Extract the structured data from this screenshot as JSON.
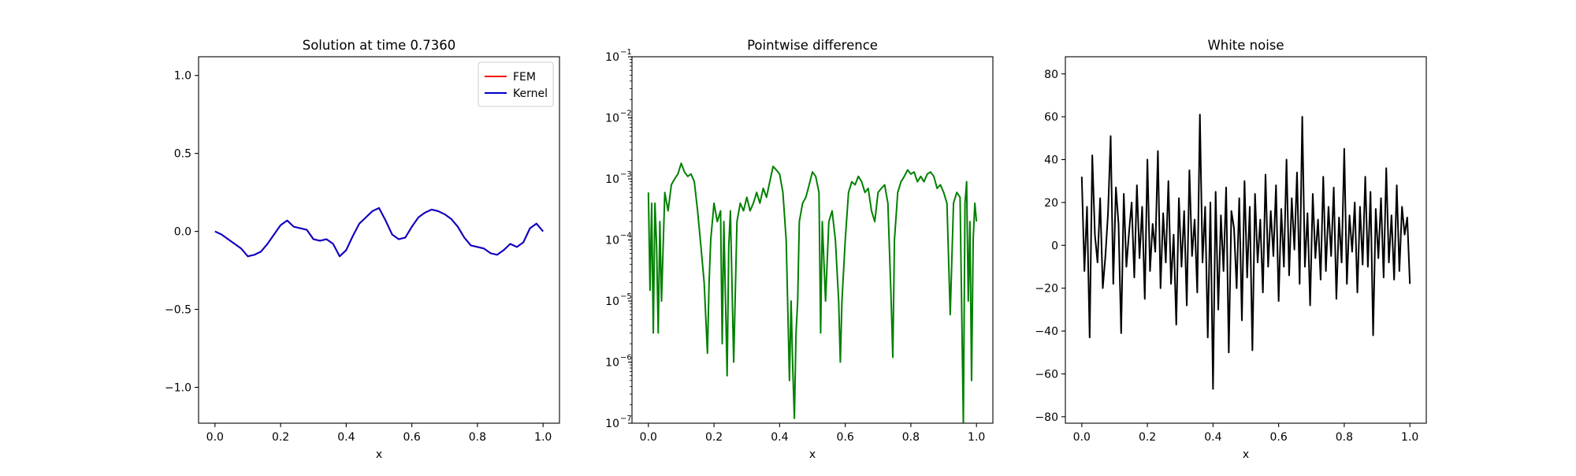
{
  "chart_data": [
    {
      "type": "line",
      "title": "Solution at time 0.7360",
      "xlabel": "x",
      "ylabel": "",
      "xlim": [
        -0.05,
        1.05
      ],
      "ylim": [
        -1.23,
        1.12
      ],
      "xticks": [
        0.0,
        0.2,
        0.4,
        0.6,
        0.8,
        1.0
      ],
      "xtick_labels": [
        "0.0",
        "0.2",
        "0.4",
        "0.6",
        "0.8",
        "1.0"
      ],
      "yticks": [
        -1.0,
        -0.5,
        0.0,
        0.5,
        1.0
      ],
      "ytick_labels": [
        "−1.0",
        "−0.5",
        "0.0",
        "0.5",
        "1.0"
      ],
      "legend": {
        "placement": "upper right",
        "entries": [
          "FEM",
          "Kernel"
        ]
      },
      "grid": false,
      "series": [
        {
          "name": "FEM",
          "color": "#ff0000",
          "x": [
            0.0,
            0.02,
            0.04,
            0.06,
            0.08,
            0.1,
            0.12,
            0.14,
            0.16,
            0.18,
            0.2,
            0.22,
            0.24,
            0.26,
            0.28,
            0.3,
            0.32,
            0.34,
            0.36,
            0.38,
            0.4,
            0.42,
            0.44,
            0.46,
            0.48,
            0.5,
            0.52,
            0.54,
            0.56,
            0.58,
            0.6,
            0.62,
            0.64,
            0.66,
            0.68,
            0.7,
            0.72,
            0.74,
            0.76,
            0.78,
            0.8,
            0.82,
            0.84,
            0.86,
            0.88,
            0.9,
            0.92,
            0.94,
            0.96,
            0.98,
            1.0
          ],
          "y": [
            0.0,
            -0.02,
            -0.05,
            -0.08,
            -0.11,
            -0.16,
            -0.15,
            -0.13,
            -0.08,
            -0.02,
            0.04,
            0.07,
            0.03,
            0.02,
            0.01,
            -0.05,
            -0.06,
            -0.05,
            -0.08,
            -0.16,
            -0.12,
            -0.03,
            0.05,
            0.09,
            0.13,
            0.15,
            0.07,
            -0.02,
            -0.05,
            -0.04,
            0.03,
            0.09,
            0.12,
            0.14,
            0.13,
            0.11,
            0.08,
            0.03,
            -0.04,
            -0.09,
            -0.1,
            -0.11,
            -0.14,
            -0.15,
            -0.12,
            -0.08,
            -0.1,
            -0.07,
            0.02,
            0.05,
            0.0
          ]
        },
        {
          "name": "Kernel",
          "color": "#0000cc",
          "x": [
            0.0,
            0.02,
            0.04,
            0.06,
            0.08,
            0.1,
            0.12,
            0.14,
            0.16,
            0.18,
            0.2,
            0.22,
            0.24,
            0.26,
            0.28,
            0.3,
            0.32,
            0.34,
            0.36,
            0.38,
            0.4,
            0.42,
            0.44,
            0.46,
            0.48,
            0.5,
            0.52,
            0.54,
            0.56,
            0.58,
            0.6,
            0.62,
            0.64,
            0.66,
            0.68,
            0.7,
            0.72,
            0.74,
            0.76,
            0.78,
            0.8,
            0.82,
            0.84,
            0.86,
            0.88,
            0.9,
            0.92,
            0.94,
            0.96,
            0.98,
            1.0
          ],
          "y": [
            0.0,
            -0.02,
            -0.05,
            -0.08,
            -0.11,
            -0.16,
            -0.15,
            -0.13,
            -0.08,
            -0.02,
            0.04,
            0.07,
            0.03,
            0.02,
            0.01,
            -0.05,
            -0.06,
            -0.05,
            -0.08,
            -0.16,
            -0.12,
            -0.03,
            0.05,
            0.09,
            0.13,
            0.15,
            0.07,
            -0.02,
            -0.05,
            -0.04,
            0.03,
            0.09,
            0.12,
            0.14,
            0.13,
            0.11,
            0.08,
            0.03,
            -0.04,
            -0.09,
            -0.1,
            -0.11,
            -0.14,
            -0.15,
            -0.12,
            -0.08,
            -0.1,
            -0.07,
            0.02,
            0.05,
            0.0
          ]
        }
      ]
    },
    {
      "type": "line",
      "title": "Pointwise difference",
      "xlabel": "x",
      "ylabel": "",
      "yscale": "log",
      "xlim": [
        -0.05,
        1.05
      ],
      "ylim": [
        1e-07,
        0.1
      ],
      "xticks": [
        0.0,
        0.2,
        0.4,
        0.6,
        0.8,
        1.0
      ],
      "xtick_labels": [
        "0.0",
        "0.2",
        "0.4",
        "0.6",
        "0.8",
        "1.0"
      ],
      "yticks": [
        1e-07,
        1e-06,
        1e-05,
        0.0001,
        0.001,
        0.01,
        0.1
      ],
      "ytick_labels": [
        "10",
        "10",
        "10",
        "10",
        "10",
        "10",
        "10"
      ],
      "ytick_exponents": [
        "−7",
        "−6",
        "−5",
        "−4",
        "−3",
        "−2",
        "−1"
      ],
      "grid": false,
      "series": [
        {
          "color": "#008000",
          "x": [
            0.0,
            0.005,
            0.01,
            0.015,
            0.02,
            0.025,
            0.03,
            0.035,
            0.04,
            0.05,
            0.06,
            0.07,
            0.08,
            0.09,
            0.1,
            0.11,
            0.12,
            0.13,
            0.14,
            0.15,
            0.16,
            0.17,
            0.18,
            0.185,
            0.19,
            0.2,
            0.21,
            0.22,
            0.225,
            0.23,
            0.24,
            0.245,
            0.25,
            0.26,
            0.27,
            0.28,
            0.29,
            0.3,
            0.31,
            0.32,
            0.33,
            0.34,
            0.35,
            0.36,
            0.37,
            0.38,
            0.39,
            0.4,
            0.41,
            0.42,
            0.43,
            0.435,
            0.44,
            0.445,
            0.45,
            0.455,
            0.46,
            0.47,
            0.48,
            0.49,
            0.5,
            0.51,
            0.52,
            0.525,
            0.53,
            0.54,
            0.55,
            0.56,
            0.57,
            0.58,
            0.585,
            0.59,
            0.6,
            0.61,
            0.62,
            0.63,
            0.64,
            0.65,
            0.66,
            0.67,
            0.68,
            0.69,
            0.7,
            0.71,
            0.72,
            0.73,
            0.74,
            0.745,
            0.75,
            0.76,
            0.77,
            0.78,
            0.79,
            0.8,
            0.81,
            0.82,
            0.83,
            0.84,
            0.85,
            0.86,
            0.87,
            0.88,
            0.89,
            0.9,
            0.91,
            0.92,
            0.93,
            0.94,
            0.95,
            0.96,
            0.965,
            0.97,
            0.975,
            0.98,
            0.985,
            0.99,
            0.995,
            1.0
          ],
          "y": [
            0.0006,
            1.5e-05,
            0.0004,
            3e-06,
            0.0004,
            8e-05,
            3e-06,
            0.0002,
            1e-05,
            0.0006,
            0.0003,
            0.0008,
            0.001,
            0.0012,
            0.0018,
            0.0013,
            0.0011,
            0.0012,
            0.0009,
            0.0003,
            8e-05,
            2e-05,
            1.4e-06,
            2e-05,
            0.0001,
            0.0004,
            0.0002,
            0.0003,
            2e-06,
            0.0002,
            6e-07,
            8e-05,
            0.0003,
            1e-06,
            0.0002,
            0.0004,
            0.0003,
            0.0005,
            0.0003,
            0.0004,
            0.0006,
            0.0004,
            0.0007,
            0.0005,
            0.0009,
            0.0016,
            0.0014,
            0.0012,
            0.0006,
            0.0001,
            5e-07,
            1e-05,
            8e-07,
            1.2e-07,
            3e-06,
            1e-05,
            0.0002,
            0.0004,
            0.0005,
            0.0008,
            0.0013,
            0.0011,
            0.0006,
            3e-06,
            0.0002,
            1e-05,
            0.0002,
            0.0003,
            0.0001,
            1e-05,
            1e-06,
            1e-05,
            0.0001,
            0.0006,
            0.0009,
            0.0008,
            0.0011,
            0.0009,
            0.0006,
            0.0007,
            0.0003,
            0.0002,
            0.0006,
            0.0007,
            0.0008,
            0.0004,
            1e-05,
            1.2e-06,
            0.0001,
            0.0006,
            0.0009,
            0.0011,
            0.0014,
            0.0012,
            0.0013,
            0.0009,
            0.0011,
            0.0009,
            0.0012,
            0.0013,
            0.0011,
            0.0007,
            0.0008,
            0.0006,
            0.0004,
            6e-06,
            0.0004,
            0.0006,
            0.0005,
            1e-07,
            0.0004,
            0.0009,
            1e-05,
            0.0002,
            5e-07,
            0.0001,
            0.0004,
            0.0002
          ]
        }
      ]
    },
    {
      "type": "line",
      "title": "White noise",
      "xlabel": "x",
      "ylabel": "",
      "xlim": [
        -0.05,
        1.05
      ],
      "ylim": [
        -83,
        88
      ],
      "xticks": [
        0.0,
        0.2,
        0.4,
        0.6,
        0.8,
        1.0
      ],
      "xtick_labels": [
        "0.0",
        "0.2",
        "0.4",
        "0.6",
        "0.8",
        "1.0"
      ],
      "yticks": [
        -80,
        -60,
        -40,
        -20,
        0,
        20,
        40,
        60,
        80
      ],
      "ytick_labels": [
        "−80",
        "−60",
        "−40",
        "−20",
        "0",
        "20",
        "40",
        "60",
        "80"
      ],
      "grid": false,
      "series": [
        {
          "color": "#000000",
          "x": [
            0.0,
            0.008,
            0.016,
            0.024,
            0.032,
            0.04,
            0.048,
            0.056,
            0.064,
            0.072,
            0.08,
            0.088,
            0.096,
            0.104,
            0.112,
            0.12,
            0.128,
            0.136,
            0.144,
            0.152,
            0.16,
            0.168,
            0.176,
            0.184,
            0.192,
            0.2,
            0.208,
            0.216,
            0.224,
            0.232,
            0.24,
            0.248,
            0.256,
            0.264,
            0.272,
            0.28,
            0.288,
            0.296,
            0.304,
            0.312,
            0.32,
            0.328,
            0.336,
            0.344,
            0.352,
            0.36,
            0.368,
            0.376,
            0.384,
            0.392,
            0.4,
            0.408,
            0.416,
            0.424,
            0.432,
            0.44,
            0.448,
            0.456,
            0.464,
            0.472,
            0.48,
            0.488,
            0.496,
            0.504,
            0.512,
            0.52,
            0.528,
            0.536,
            0.544,
            0.552,
            0.56,
            0.568,
            0.576,
            0.584,
            0.592,
            0.6,
            0.608,
            0.616,
            0.624,
            0.632,
            0.64,
            0.648,
            0.656,
            0.664,
            0.672,
            0.68,
            0.688,
            0.696,
            0.704,
            0.712,
            0.72,
            0.728,
            0.736,
            0.744,
            0.752,
            0.76,
            0.768,
            0.776,
            0.784,
            0.792,
            0.8,
            0.808,
            0.816,
            0.824,
            0.832,
            0.84,
            0.848,
            0.856,
            0.864,
            0.872,
            0.88,
            0.888,
            0.896,
            0.904,
            0.912,
            0.92,
            0.928,
            0.936,
            0.944,
            0.952,
            0.96,
            0.968,
            0.976,
            0.984,
            0.992,
            1.0
          ],
          "y": [
            32,
            -12,
            18,
            -43,
            42,
            5,
            -8,
            22,
            -20,
            -5,
            15,
            51,
            -18,
            27,
            10,
            -41,
            24,
            -10,
            6,
            20,
            -15,
            28,
            -6,
            18,
            -25,
            40,
            -12,
            10,
            -3,
            44,
            -20,
            15,
            -8,
            30,
            -18,
            5,
            -37,
            22,
            -10,
            16,
            -28,
            35,
            -5,
            12,
            -22,
            61,
            -8,
            18,
            -43,
            20,
            -67,
            25,
            -30,
            14,
            -12,
            27,
            -50,
            16,
            8,
            -20,
            22,
            -35,
            30,
            -15,
            18,
            -49,
            24,
            -8,
            12,
            -22,
            33,
            -10,
            16,
            -5,
            28,
            -26,
            17,
            -10,
            40,
            -14,
            22,
            -2,
            34,
            -18,
            60,
            -10,
            15,
            -28,
            24,
            -6,
            12,
            -16,
            32,
            -12,
            18,
            -5,
            27,
            -25,
            13,
            -8,
            45,
            -18,
            14,
            -3,
            20,
            -22,
            18,
            -9,
            32,
            -10,
            25,
            -42,
            17,
            -6,
            22,
            -15,
            36,
            -8,
            14,
            -16,
            28,
            -12,
            18,
            5,
            13,
            -18
          ]
        }
      ]
    }
  ]
}
